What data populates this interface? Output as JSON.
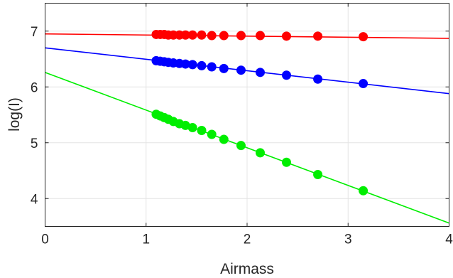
{
  "chart_data": {
    "type": "scatter",
    "xlabel": "Airmass",
    "ylabel": "log(I)",
    "xlim": [
      0,
      4
    ],
    "ylim": [
      3.5,
      7.5
    ],
    "xticks": [
      0,
      1,
      2,
      3,
      4
    ],
    "yticks": [
      4,
      5,
      6,
      7
    ],
    "grid": true,
    "series": [
      {
        "color": "#ff0000",
        "x": [
          1.1,
          1.14,
          1.18,
          1.22,
          1.27,
          1.33,
          1.39,
          1.46,
          1.55,
          1.65,
          1.77,
          1.94,
          2.13,
          2.39,
          2.7,
          3.15
        ],
        "y": [
          6.94,
          6.94,
          6.94,
          6.93,
          6.93,
          6.93,
          6.93,
          6.93,
          6.93,
          6.92,
          6.92,
          6.92,
          6.92,
          6.91,
          6.91,
          6.9
        ],
        "fit": {
          "intercept": 6.95,
          "slope": -0.02
        }
      },
      {
        "color": "#0000ff",
        "x": [
          1.1,
          1.14,
          1.18,
          1.22,
          1.27,
          1.33,
          1.39,
          1.46,
          1.55,
          1.65,
          1.77,
          1.94,
          2.13,
          2.39,
          2.7,
          3.15
        ],
        "y": [
          6.47,
          6.46,
          6.45,
          6.44,
          6.43,
          6.42,
          6.41,
          6.4,
          6.38,
          6.36,
          6.33,
          6.3,
          6.26,
          6.21,
          6.14,
          6.06
        ],
        "fit": {
          "intercept": 6.7,
          "slope": -0.205
        }
      },
      {
        "color": "#00ee00",
        "x": [
          1.1,
          1.14,
          1.18,
          1.22,
          1.27,
          1.33,
          1.39,
          1.46,
          1.55,
          1.65,
          1.77,
          1.94,
          2.13,
          2.39,
          2.7,
          3.15
        ],
        "y": [
          5.51,
          5.48,
          5.45,
          5.42,
          5.38,
          5.34,
          5.31,
          5.27,
          5.22,
          5.15,
          5.06,
          4.95,
          4.82,
          4.65,
          4.43,
          4.14
        ],
        "fit": {
          "intercept": 6.26,
          "slope": -0.675
        }
      }
    ]
  }
}
